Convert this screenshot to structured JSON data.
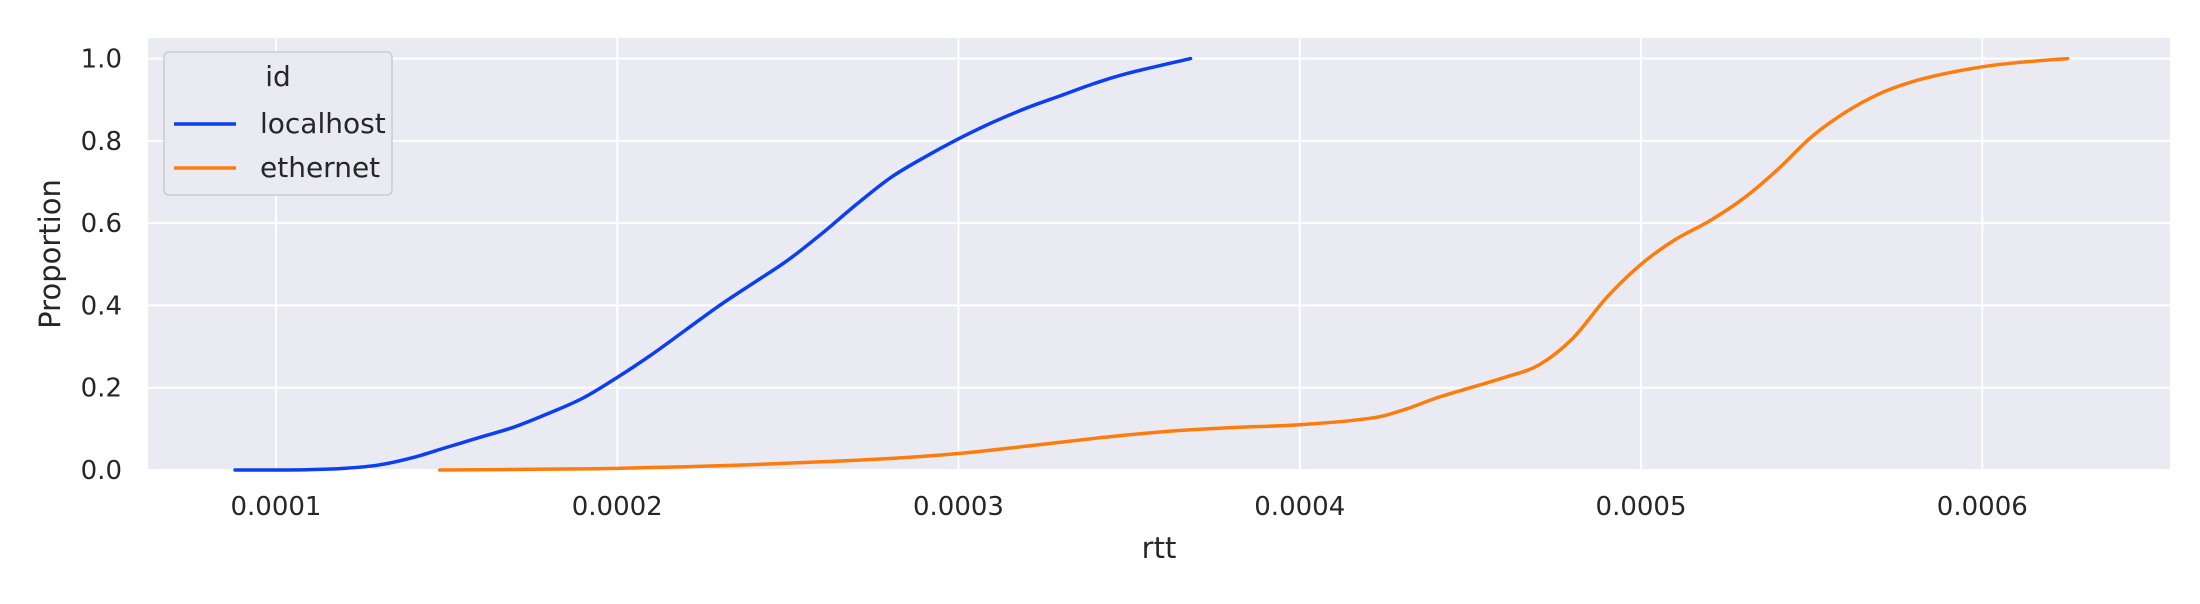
{
  "chart_data": {
    "type": "line",
    "title": "",
    "xlabel": "rtt",
    "ylabel": "Proportion",
    "xlim": [
      6.25e-05,
      0.000655
    ],
    "ylim": [
      0,
      1.05
    ],
    "x_ticks": [
      "0.0001",
      "0.0002",
      "0.0003",
      "0.0004",
      "0.0005",
      "0.0006"
    ],
    "x_tick_values": [
      0.0001,
      0.0002,
      0.0003,
      0.0004,
      0.0005,
      0.0006
    ],
    "y_ticks": [
      "0.0",
      "0.2",
      "0.4",
      "0.6",
      "0.8",
      "1.0"
    ],
    "y_tick_values": [
      0,
      0.2,
      0.4,
      0.6,
      0.8,
      1.0
    ],
    "grid": true,
    "background": "#eaeaf2",
    "legend": {
      "title": "id",
      "placement": "top-left"
    },
    "series": [
      {
        "name": "localhost",
        "color": "#0b3ff0",
        "x": [
          8.8e-05,
          0.0001,
          0.00011,
          0.00012,
          0.00013,
          0.00014,
          0.00015,
          0.00016,
          0.00017,
          0.00018,
          0.00019,
          0.0002,
          0.00021,
          0.00022,
          0.00023,
          0.00024,
          0.00025,
          0.00026,
          0.00027,
          0.00028,
          0.00029,
          0.0003,
          0.00031,
          0.00032,
          0.00033,
          0.00034,
          0.00035,
          0.000368
        ],
        "y": [
          0.0,
          0.0,
          0.001,
          0.004,
          0.012,
          0.03,
          0.055,
          0.08,
          0.105,
          0.138,
          0.175,
          0.225,
          0.28,
          0.34,
          0.4,
          0.455,
          0.51,
          0.575,
          0.645,
          0.71,
          0.76,
          0.805,
          0.845,
          0.88,
          0.91,
          0.94,
          0.965,
          1.0
        ]
      },
      {
        "name": "ethernet",
        "color": "#ff7c0c",
        "x": [
          0.000148,
          0.00018,
          0.0002,
          0.00022,
          0.00024,
          0.00026,
          0.00028,
          0.0003,
          0.00032,
          0.00034,
          0.00036,
          0.00038,
          0.0004,
          0.00042,
          0.00043,
          0.00044,
          0.00045,
          0.00046,
          0.00047,
          0.00048,
          0.00049,
          0.0005,
          0.00051,
          0.00052,
          0.00053,
          0.00054,
          0.00055,
          0.00056,
          0.00057,
          0.00058,
          0.00059,
          0.0006,
          0.00061,
          0.000625
        ],
        "y": [
          0.0,
          0.002,
          0.004,
          0.008,
          0.013,
          0.02,
          0.028,
          0.04,
          0.058,
          0.077,
          0.093,
          0.103,
          0.11,
          0.125,
          0.145,
          0.175,
          0.2,
          0.225,
          0.255,
          0.32,
          0.42,
          0.5,
          0.56,
          0.605,
          0.66,
          0.73,
          0.81,
          0.87,
          0.915,
          0.945,
          0.965,
          0.98,
          0.99,
          1.0
        ]
      }
    ]
  }
}
